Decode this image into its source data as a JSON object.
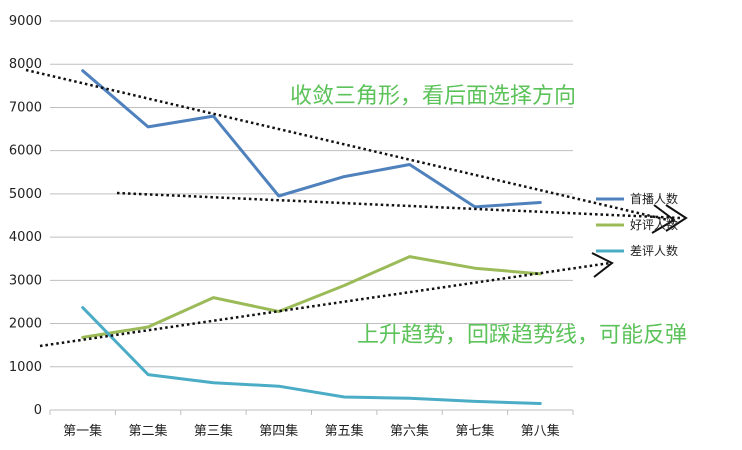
{
  "chart_data": {
    "type": "line",
    "categories": [
      "第一集",
      "第二集",
      "第三集",
      "第四集",
      "第五集",
      "第六集",
      "第七集",
      "第八集"
    ],
    "ylim": [
      0,
      9000
    ],
    "yticks": [
      0,
      1000,
      2000,
      3000,
      4000,
      5000,
      6000,
      7000,
      8000,
      9000
    ],
    "grid": true,
    "legend_position": "right",
    "series": [
      {
        "name": "首播人数",
        "color": "#4f81bd",
        "values": [
          7850,
          6550,
          6800,
          4950,
          5400,
          5680,
          4700,
          4800
        ]
      },
      {
        "name": "好评人数",
        "color": "#9bbb59",
        "values": [
          1680,
          1920,
          2600,
          2280,
          2880,
          3550,
          3280,
          3150
        ]
      },
      {
        "name": "差评人数",
        "color": "#4bacc6",
        "values": [
          2370,
          820,
          630,
          550,
          300,
          270,
          200,
          150
        ]
      }
    ],
    "annotations": [
      {
        "text": "收敛三角形，看后面选择方向"
      },
      {
        "text": "上升趋势，回踩趋势线，可能反弹"
      }
    ]
  }
}
